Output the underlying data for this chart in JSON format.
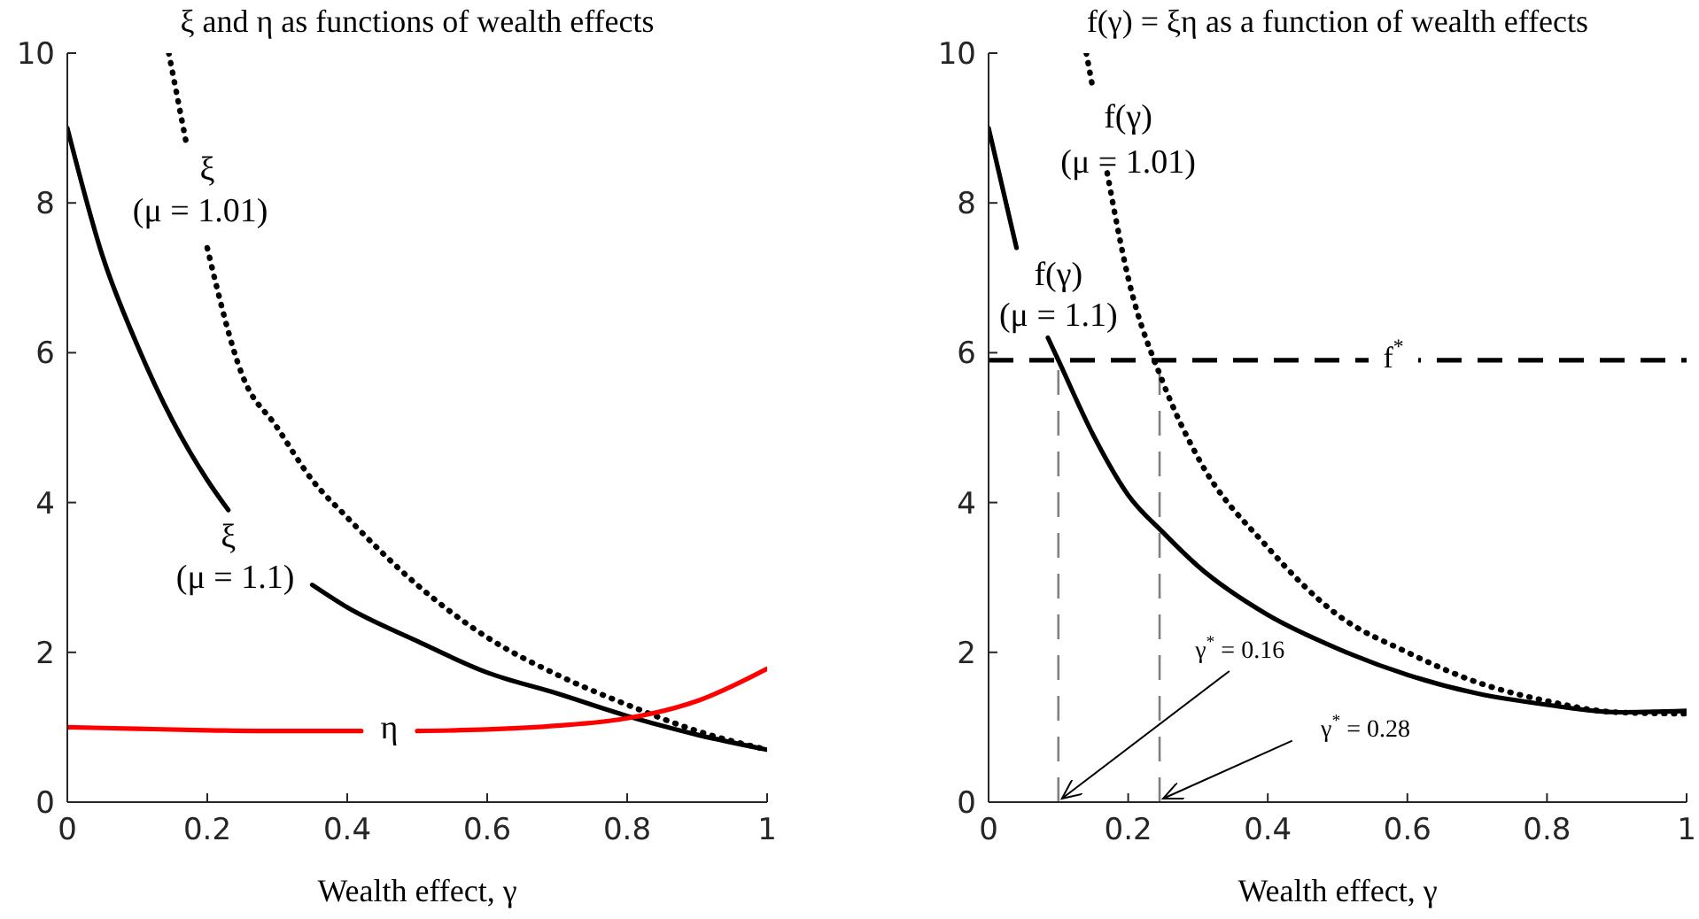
{
  "chart_data": [
    {
      "type": "line",
      "title": "ξ and η as functions of wealth effects",
      "xlabel": "Wealth effect, γ",
      "xlim": [
        0,
        1
      ],
      "xticks": [
        0,
        0.2,
        0.4,
        0.6,
        0.8,
        1
      ],
      "ylim": [
        0,
        10
      ],
      "yticks": [
        0,
        2,
        4,
        6,
        8,
        10
      ],
      "series": [
        {
          "color": "#000000",
          "line_style": "solid",
          "x": [
            0,
            0.05,
            0.1,
            0.15,
            0.2,
            0.23,
            0.29,
            0.35,
            0.4,
            0.5,
            0.6,
            0.7,
            0.8,
            0.9,
            1
          ],
          "values": [
            9,
            7.3,
            6.1,
            5.1,
            4.3,
            3.9,
            null,
            2.9,
            2.6,
            2.15,
            1.73,
            1.45,
            1.15,
            0.9,
            0.7
          ]
        },
        {
          "color": "#000000",
          "line_style": "dotted",
          "x": [
            0.145,
            0.17,
            0.185,
            0.2,
            0.25,
            0.3,
            0.35,
            0.4,
            0.5,
            0.6,
            0.7,
            0.8,
            0.9,
            1
          ],
          "values": [
            10,
            8.8,
            null,
            7.4,
            5.7,
            5.0,
            4.3,
            3.8,
            2.9,
            2.2,
            1.7,
            1.3,
            0.95,
            0.7
          ]
        },
        {
          "color": "#ff0000",
          "line_style": "solid",
          "x": [
            0,
            0.1,
            0.2,
            0.3,
            0.42,
            0.46,
            0.5,
            0.6,
            0.7,
            0.8,
            0.9,
            1
          ],
          "values": [
            1.0,
            0.98,
            0.96,
            0.95,
            0.95,
            null,
            0.95,
            0.97,
            1.02,
            1.12,
            1.35,
            1.78
          ]
        }
      ],
      "annotations": [
        "ξ",
        "(μ = 1.01)",
        "ξ",
        "(μ = 1.1)",
        "η"
      ]
    },
    {
      "type": "line",
      "title": "f(γ) = ξη as a function of wealth effects",
      "xlabel": "Wealth effect, γ",
      "xlim": [
        0,
        1
      ],
      "xticks": [
        0,
        0.2,
        0.4,
        0.6,
        0.8,
        1
      ],
      "ylim": [
        0,
        10
      ],
      "yticks": [
        0,
        2,
        4,
        6,
        8,
        10
      ],
      "series": [
        {
          "color": "#000000",
          "line_style": "solid",
          "x": [
            0,
            0.04,
            0.06,
            0.085,
            0.1,
            0.15,
            0.2,
            0.25,
            0.3,
            0.4,
            0.5,
            0.6,
            0.7,
            0.8,
            0.9,
            1
          ],
          "values": [
            9,
            7.4,
            null,
            6.2,
            5.9,
            4.9,
            4.1,
            3.6,
            3.15,
            2.5,
            2.05,
            1.7,
            1.45,
            1.3,
            1.2,
            1.22
          ]
        },
        {
          "color": "#000000",
          "line_style": "dotted",
          "x": [
            0.14,
            0.15,
            0.16,
            0.17,
            0.2,
            0.25,
            0.3,
            0.4,
            0.5,
            0.6,
            0.7,
            0.8,
            0.9,
            1
          ],
          "values": [
            10,
            9.5,
            null,
            8.4,
            7.0,
            5.6,
            4.6,
            3.4,
            2.5,
            2.0,
            1.6,
            1.35,
            1.2,
            1.18
          ]
        }
      ],
      "ref_lines": [
        {
          "axis": "y",
          "value": 5.9,
          "label": "f$^{*}$",
          "color": "#000000",
          "line_style": "dashed"
        },
        {
          "axis": "x",
          "value": 0.1,
          "label": null,
          "color": "#808080",
          "line_style": "dashed"
        },
        {
          "axis": "x",
          "value": 0.245,
          "label": null,
          "color": "#808080",
          "line_style": "dashed"
        }
      ],
      "annotations": [
        "f(γ)",
        "(μ = 1.01)",
        "f(γ)",
        "(μ = 1.1)",
        {
          "text": "γ$^{*}$ = 0.16",
          "x": 0.1,
          "y": 0
        },
        {
          "text": "γ$^{*}$ = 0.28",
          "x": 0.245,
          "y": 0
        }
      ]
    }
  ]
}
